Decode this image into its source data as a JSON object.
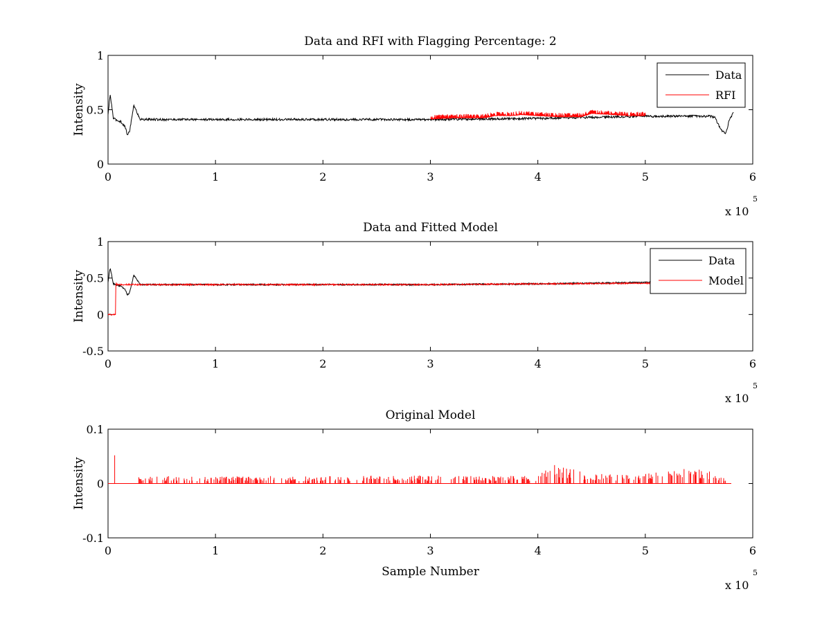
{
  "chart_data": [
    {
      "type": "line",
      "title": "Data and RFI with Flagging Percentage: 2",
      "xlabel": "",
      "ylabel": "Intensity",
      "xlim": [
        0,
        600000
      ],
      "ylim": [
        0,
        1
      ],
      "xticks": [
        "0",
        "1",
        "2",
        "3",
        "4",
        "5",
        "6"
      ],
      "yticks": [
        "0",
        "0.5",
        "1"
      ],
      "x_multiplier": "x 10",
      "x_multiplier_exponent": "5",
      "legend_position": "top-right",
      "legend": [
        "Data",
        "RFI"
      ],
      "series": [
        {
          "name": "Data",
          "color": "#000000",
          "x": [
            0,
            2000,
            5000,
            9000,
            12000,
            16000,
            18000,
            20000,
            22000,
            24000,
            30000,
            100000,
            200000,
            300000,
            400000,
            500000,
            560000,
            565000,
            570000,
            575000,
            578000,
            582000
          ],
          "values": [
            0.45,
            0.64,
            0.42,
            0.4,
            0.39,
            0.34,
            0.27,
            0.3,
            0.42,
            0.54,
            0.41,
            0.41,
            0.41,
            0.41,
            0.42,
            0.44,
            0.44,
            0.43,
            0.32,
            0.28,
            0.4,
            0.47
          ]
        },
        {
          "name": "RFI",
          "color": "#ff0000",
          "x": [
            300000,
            320000,
            335000,
            350000,
            360000,
            375000,
            385000,
            400000,
            420000,
            440000,
            450000,
            470000,
            485000,
            500000
          ],
          "values": [
            0.44,
            0.45,
            0.45,
            0.45,
            0.47,
            0.47,
            0.48,
            0.47,
            0.46,
            0.46,
            0.49,
            0.48,
            0.47,
            0.47
          ]
        }
      ]
    },
    {
      "type": "line",
      "title": "Data and Fitted Model",
      "xlabel": "",
      "ylabel": "Intensity",
      "xlim": [
        0,
        600000
      ],
      "ylim": [
        -0.5,
        1
      ],
      "xticks": [
        "0",
        "1",
        "2",
        "3",
        "4",
        "5",
        "6"
      ],
      "yticks": [
        "-0.5",
        "0",
        "0.5",
        "1"
      ],
      "x_multiplier": "x 10",
      "x_multiplier_exponent": "5",
      "legend_position": "top-right",
      "legend": [
        "Data",
        "Model"
      ],
      "series": [
        {
          "name": "Data",
          "color": "#000000",
          "x": [
            0,
            2000,
            5000,
            9000,
            12000,
            16000,
            18000,
            20000,
            22000,
            24000,
            30000,
            100000,
            200000,
            300000,
            400000,
            500000,
            510000
          ],
          "values": [
            0.45,
            0.64,
            0.42,
            0.4,
            0.39,
            0.34,
            0.27,
            0.3,
            0.42,
            0.54,
            0.41,
            0.41,
            0.41,
            0.41,
            0.42,
            0.44,
            0.44
          ]
        },
        {
          "name": "Model",
          "color": "#ff0000",
          "x": [
            0,
            7000,
            7000,
            8000,
            8000,
            100000,
            200000,
            300000,
            400000,
            500000,
            510000
          ],
          "values": [
            0,
            0,
            0.42,
            0.42,
            0.41,
            0.41,
            0.41,
            0.41,
            0.42,
            0.43,
            0.43
          ]
        }
      ]
    },
    {
      "type": "line",
      "title": "Original Model",
      "xlabel": "Sample Number",
      "ylabel": "Intensity",
      "xlim": [
        0,
        600000
      ],
      "ylim": [
        -0.1,
        0.1
      ],
      "xticks": [
        "0",
        "1",
        "2",
        "3",
        "4",
        "5",
        "6"
      ],
      "yticks": [
        "-0.1",
        "0",
        "0.1"
      ],
      "x_multiplier": "x 10",
      "x_multiplier_exponent": "5",
      "series": [
        {
          "name": "",
          "color": "#ff0000",
          "x": [
            0,
            6000,
            6000,
            6500,
            6500,
            30000,
            60000,
            100000,
            150000,
            200000,
            250000,
            300000,
            350000,
            400000,
            412000,
            450000,
            500000,
            540000,
            565000,
            580000
          ],
          "values": [
            0,
            0,
            0.052,
            0.052,
            0,
            0.011,
            0.012,
            0.011,
            0.012,
            0.012,
            0.013,
            0.013,
            0.012,
            0.013,
            0.032,
            0.015,
            0.016,
            0.024,
            0.02,
            0
          ]
        }
      ]
    }
  ]
}
